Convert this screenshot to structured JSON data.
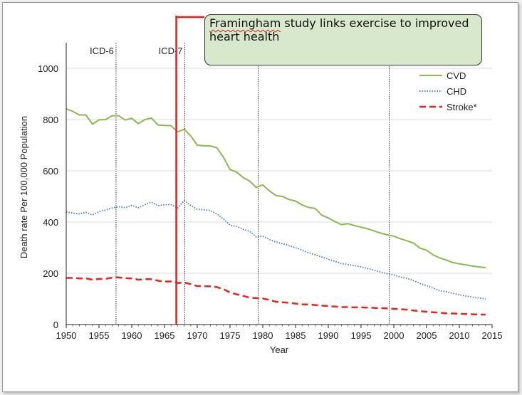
{
  "annotation": {
    "text_first_word": "Framingham",
    "text_rest": " study links exercise to improved heart health",
    "marker_year": 1966.8
  },
  "chart_data": {
    "type": "line",
    "title": "",
    "xlabel": "Year",
    "ylabel": "Death rate Per 100,000 Population",
    "xlim": [
      1950,
      2015
    ],
    "ylim": [
      0,
      1100
    ],
    "x_ticks": [
      1950,
      1955,
      1960,
      1965,
      1970,
      1975,
      1980,
      1985,
      1990,
      1995,
      2000,
      2005,
      2010,
      2015
    ],
    "y_ticks": [
      0,
      200,
      400,
      600,
      800,
      1000
    ],
    "grid": "horizontal",
    "legend_position": "top-right",
    "revision_lines": [
      {
        "year": 1957.6,
        "label": "ICD-6"
      },
      {
        "year": 1968.1,
        "label": "ICD-7"
      },
      {
        "year": 1979.3,
        "label": ""
      },
      {
        "year": 1999.3,
        "label": ""
      }
    ],
    "x": [
      1950,
      1951,
      1952,
      1953,
      1954,
      1955,
      1956,
      1957,
      1958,
      1959,
      1960,
      1961,
      1962,
      1963,
      1964,
      1965,
      1966,
      1967,
      1968,
      1969,
      1970,
      1971,
      1972,
      1973,
      1974,
      1975,
      1976,
      1977,
      1978,
      1979,
      1980,
      1981,
      1982,
      1983,
      1984,
      1985,
      1986,
      1987,
      1988,
      1989,
      1990,
      1991,
      1992,
      1993,
      1994,
      1995,
      1996,
      1997,
      1998,
      1999,
      2000,
      2001,
      2002,
      2003,
      2004,
      2005,
      2006,
      2007,
      2008,
      2009,
      2010,
      2011,
      2012,
      2013,
      2014
    ],
    "series": [
      {
        "name": "CVD",
        "color": "#8db84e",
        "style": "solid",
        "values": [
          842,
          832,
          818,
          818,
          782,
          799,
          800,
          815,
          815,
          798,
          805,
          784,
          800,
          806,
          779,
          777,
          776,
          752,
          762,
          736,
          700,
          698,
          697,
          690,
          653,
          605,
          595,
          574,
          560,
          535,
          545,
          522,
          504,
          500,
          488,
          482,
          467,
          457,
          453,
          427,
          416,
          402,
          390,
          394,
          386,
          380,
          374,
          365,
          357,
          350,
          345,
          335,
          327,
          318,
          298,
          290,
          272,
          260,
          252,
          242,
          237,
          233,
          228,
          225,
          222
        ]
      },
      {
        "name": "CHD",
        "color": "#4a78b8",
        "style": "dotted",
        "values": [
          440,
          435,
          432,
          438,
          428,
          440,
          447,
          455,
          460,
          456,
          465,
          456,
          468,
          478,
          464,
          468,
          468,
          455,
          484,
          465,
          450,
          448,
          445,
          432,
          412,
          388,
          383,
          372,
          364,
          342,
          345,
          332,
          322,
          316,
          308,
          300,
          290,
          280,
          272,
          264,
          255,
          247,
          238,
          234,
          230,
          225,
          219,
          212,
          205,
          198,
          194,
          185,
          180,
          172,
          160,
          152,
          142,
          132,
          128,
          122,
          116,
          111,
          107,
          104,
          100
        ]
      },
      {
        "name": "Stroke*",
        "color": "#e8241c",
        "style": "dashed",
        "values": [
          182,
          182,
          180,
          180,
          175,
          178,
          178,
          183,
          184,
          181,
          180,
          175,
          177,
          177,
          171,
          168,
          168,
          162,
          164,
          158,
          150,
          150,
          149,
          146,
          138,
          125,
          118,
          112,
          105,
          103,
          102,
          96,
          89,
          87,
          85,
          82,
          79,
          78,
          76,
          74,
          72,
          70,
          68,
          68,
          67,
          67,
          66,
          65,
          64,
          63,
          61,
          60,
          58,
          55,
          52,
          50,
          48,
          46,
          44,
          43,
          42,
          41,
          40,
          39,
          39
        ]
      }
    ]
  }
}
